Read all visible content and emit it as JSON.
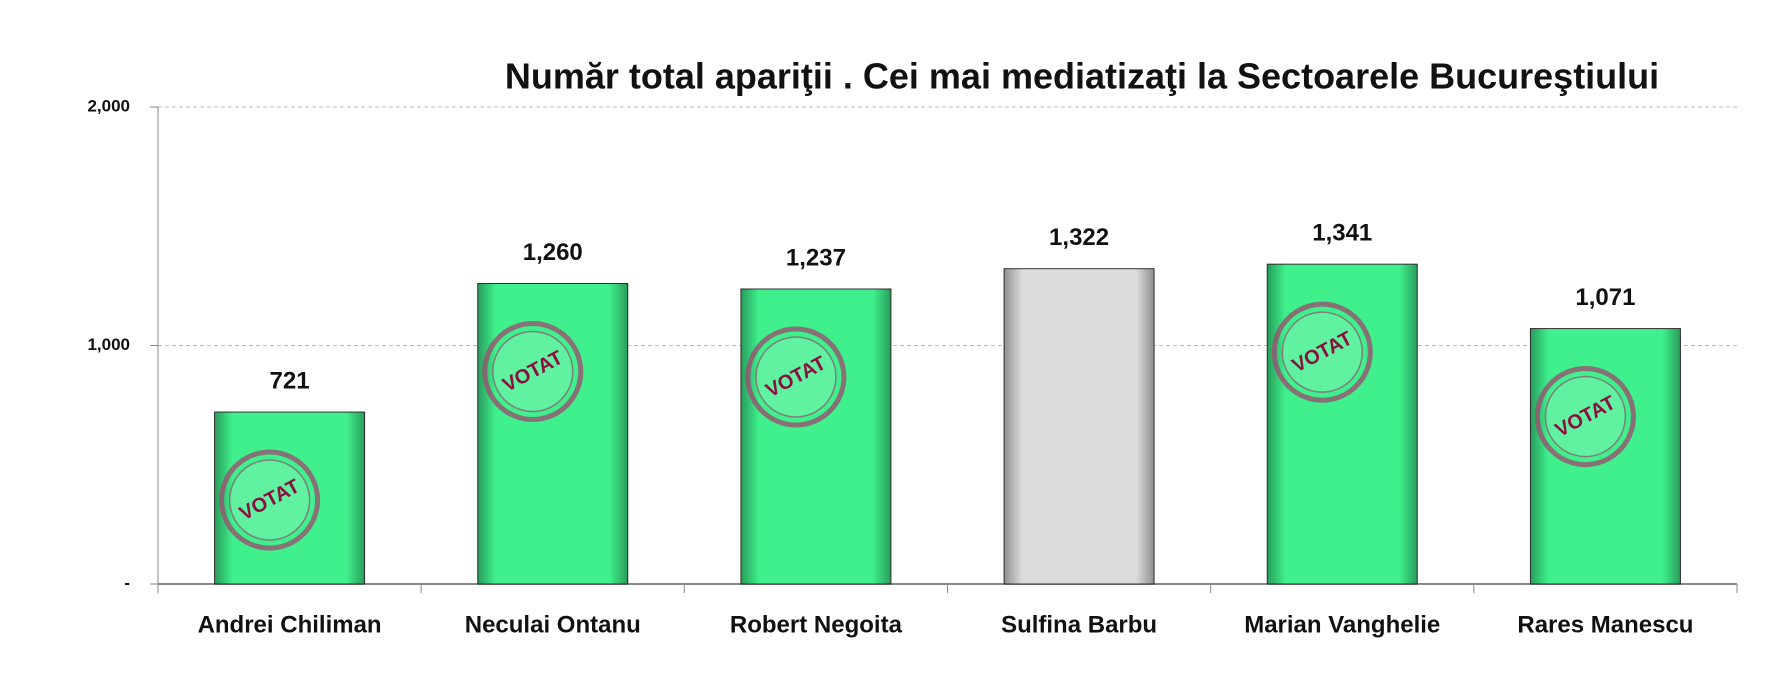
{
  "chart_data": {
    "type": "bar",
    "title": "Număr total apariţii . Cei mai mediatizaţi la Sectoarele Bucureştiului",
    "categories": [
      "Andrei Chiliman",
      "Neculai Ontanu",
      "Robert Negoita",
      "Sulfina Barbu",
      "Marian Vanghelie",
      "Rares Manescu"
    ],
    "values": [
      721,
      1260,
      1237,
      1322,
      1341,
      1071
    ],
    "value_labels": [
      "721",
      "1,260",
      "1,237",
      "1,322",
      "1,341",
      "1,071"
    ],
    "colors": [
      "#3ff08c",
      "#3ff08c",
      "#3ff08c",
      "#dcdcdc",
      "#3ff08c",
      "#3ff08c"
    ],
    "stamp_labels": [
      "VOTAT",
      "VOTAT",
      "VOTAT",
      null,
      "VOTAT",
      "VOTAT"
    ],
    "ylim": [
      0,
      2000
    ],
    "yticks": [
      {
        "value": 0,
        "label": "-"
      },
      {
        "value": 1000,
        "label": "1,000"
      },
      {
        "value": 2000,
        "label": "2,000"
      }
    ],
    "grid": true
  }
}
